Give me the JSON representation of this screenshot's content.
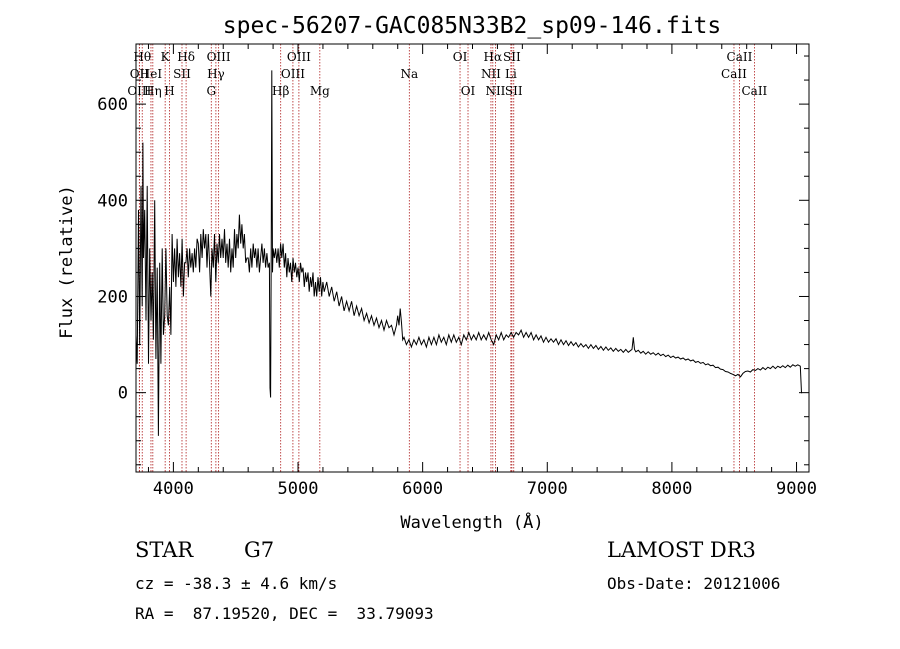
{
  "chart_data": {
    "type": "line",
    "title": "spec-56207-GAC085N33B2_sp09-146.fits",
    "xlabel": "Wavelength (Å)",
    "ylabel": "Flux (relative)",
    "xlim": [
      3700,
      9100
    ],
    "ylim": [
      -165,
      725
    ],
    "xticks": [
      4000,
      5000,
      6000,
      7000,
      8000,
      9000
    ],
    "yticks": [
      0,
      200,
      400,
      600
    ],
    "line_color": "#000000",
    "marker_color": "#b02020",
    "spectrum": [
      [
        3700,
        120
      ],
      [
        3710,
        60
      ],
      [
        3720,
        380
      ],
      [
        3730,
        100
      ],
      [
        3740,
        430
      ],
      [
        3750,
        180
      ],
      [
        3755,
        520
      ],
      [
        3760,
        280
      ],
      [
        3770,
        380
      ],
      [
        3780,
        150
      ],
      [
        3790,
        430
      ],
      [
        3800,
        60
      ],
      [
        3810,
        300
      ],
      [
        3820,
        150
      ],
      [
        3830,
        250
      ],
      [
        3840,
        110
      ],
      [
        3850,
        400
      ],
      [
        3860,
        70
      ],
      [
        3870,
        260
      ],
      [
        3880,
        -90
      ],
      [
        3890,
        270
      ],
      [
        3900,
        60
      ],
      [
        3910,
        300
      ],
      [
        3920,
        120
      ],
      [
        3930,
        160
      ],
      [
        3940,
        300
      ],
      [
        3950,
        160
      ],
      [
        3960,
        140
      ],
      [
        3970,
        220
      ],
      [
        3980,
        120
      ],
      [
        3990,
        330
      ],
      [
        4000,
        230
      ],
      [
        4010,
        300
      ],
      [
        4020,
        220
      ],
      [
        4030,
        320
      ],
      [
        4040,
        240
      ],
      [
        4050,
        290
      ],
      [
        4060,
        220
      ],
      [
        4070,
        320
      ],
      [
        4080,
        200
      ],
      [
        4090,
        270
      ],
      [
        4100,
        270
      ],
      [
        4110,
        300
      ],
      [
        4120,
        240
      ],
      [
        4130,
        300
      ],
      [
        4140,
        260
      ],
      [
        4150,
        290
      ],
      [
        4160,
        250
      ],
      [
        4170,
        300
      ],
      [
        4180,
        260
      ],
      [
        4190,
        320
      ],
      [
        4200,
        310
      ],
      [
        4210,
        250
      ],
      [
        4220,
        330
      ],
      [
        4230,
        280
      ],
      [
        4240,
        340
      ],
      [
        4250,
        300
      ],
      [
        4260,
        330
      ],
      [
        4270,
        260
      ],
      [
        4280,
        330
      ],
      [
        4290,
        270
      ],
      [
        4300,
        200
      ],
      [
        4310,
        300
      ],
      [
        4320,
        260
      ],
      [
        4330,
        330
      ],
      [
        4340,
        230
      ],
      [
        4350,
        310
      ],
      [
        4360,
        270
      ],
      [
        4370,
        330
      ],
      [
        4380,
        280
      ],
      [
        4390,
        320
      ],
      [
        4400,
        280
      ],
      [
        4410,
        340
      ],
      [
        4420,
        270
      ],
      [
        4430,
        310
      ],
      [
        4440,
        260
      ],
      [
        4450,
        320
      ],
      [
        4460,
        250
      ],
      [
        4470,
        300
      ],
      [
        4480,
        260
      ],
      [
        4490,
        340
      ],
      [
        4500,
        280
      ],
      [
        4510,
        330
      ],
      [
        4520,
        300
      ],
      [
        4530,
        370
      ],
      [
        4540,
        310
      ],
      [
        4550,
        350
      ],
      [
        4560,
        300
      ],
      [
        4570,
        330
      ],
      [
        4580,
        270
      ],
      [
        4590,
        280
      ],
      [
        4600,
        280
      ],
      [
        4610,
        250
      ],
      [
        4620,
        300
      ],
      [
        4630,
        260
      ],
      [
        4640,
        310
      ],
      [
        4650,
        280
      ],
      [
        4660,
        300
      ],
      [
        4670,
        260
      ],
      [
        4680,
        300
      ],
      [
        4690,
        250
      ],
      [
        4700,
        280
      ],
      [
        4710,
        310
      ],
      [
        4720,
        270
      ],
      [
        4730,
        300
      ],
      [
        4740,
        260
      ],
      [
        4750,
        290
      ],
      [
        4760,
        260
      ],
      [
        4770,
        270
      ],
      [
        4775,
        10
      ],
      [
        4780,
        -10
      ],
      [
        4785,
        280
      ],
      [
        4790,
        670
      ],
      [
        4795,
        250
      ],
      [
        4800,
        300
      ],
      [
        4810,
        280
      ],
      [
        4820,
        300
      ],
      [
        4830,
        270
      ],
      [
        4840,
        300
      ],
      [
        4850,
        260
      ],
      [
        4860,
        310
      ],
      [
        4870,
        280
      ],
      [
        4880,
        310
      ],
      [
        4890,
        260
      ],
      [
        4900,
        290
      ],
      [
        4910,
        240
      ],
      [
        4920,
        280
      ],
      [
        4930,
        250
      ],
      [
        4940,
        270
      ],
      [
        4950,
        230
      ],
      [
        4960,
        280
      ],
      [
        4970,
        250
      ],
      [
        4980,
        270
      ],
      [
        4990,
        240
      ],
      [
        5000,
        260
      ],
      [
        5010,
        230
      ],
      [
        5020,
        270
      ],
      [
        5030,
        250
      ],
      [
        5040,
        260
      ],
      [
        5050,
        220
      ],
      [
        5060,
        250
      ],
      [
        5070,
        230
      ],
      [
        5080,
        250
      ],
      [
        5090,
        210
      ],
      [
        5100,
        240
      ],
      [
        5110,
        220
      ],
      [
        5120,
        250
      ],
      [
        5130,
        200
      ],
      [
        5140,
        230
      ],
      [
        5150,
        200
      ],
      [
        5160,
        240
      ],
      [
        5170,
        210
      ],
      [
        5180,
        240
      ],
      [
        5190,
        200
      ],
      [
        5200,
        230
      ],
      [
        5210,
        210
      ],
      [
        5230,
        230
      ],
      [
        5250,
        200
      ],
      [
        5270,
        220
      ],
      [
        5290,
        190
      ],
      [
        5310,
        210
      ],
      [
        5330,
        180
      ],
      [
        5350,
        200
      ],
      [
        5370,
        170
      ],
      [
        5390,
        190
      ],
      [
        5410,
        170
      ],
      [
        5430,
        190
      ],
      [
        5450,
        160
      ],
      [
        5470,
        180
      ],
      [
        5490,
        160
      ],
      [
        5510,
        175
      ],
      [
        5530,
        150
      ],
      [
        5550,
        165
      ],
      [
        5570,
        145
      ],
      [
        5590,
        160
      ],
      [
        5610,
        140
      ],
      [
        5630,
        155
      ],
      [
        5650,
        135
      ],
      [
        5670,
        150
      ],
      [
        5690,
        130
      ],
      [
        5710,
        150
      ],
      [
        5730,
        135
      ],
      [
        5750,
        140
      ],
      [
        5770,
        120
      ],
      [
        5790,
        140
      ],
      [
        5800,
        160
      ],
      [
        5810,
        140
      ],
      [
        5820,
        175
      ],
      [
        5830,
        145
      ],
      [
        5840,
        110
      ],
      [
        5850,
        115
      ],
      [
        5870,
        100
      ],
      [
        5890,
        110
      ],
      [
        5910,
        95
      ],
      [
        5930,
        110
      ],
      [
        5950,
        100
      ],
      [
        5970,
        115
      ],
      [
        5990,
        100
      ],
      [
        6010,
        110
      ],
      [
        6030,
        95
      ],
      [
        6050,
        115
      ],
      [
        6070,
        100
      ],
      [
        6090,
        115
      ],
      [
        6110,
        100
      ],
      [
        6130,
        120
      ],
      [
        6150,
        105
      ],
      [
        6170,
        115
      ],
      [
        6190,
        100
      ],
      [
        6210,
        120
      ],
      [
        6230,
        105
      ],
      [
        6250,
        120
      ],
      [
        6270,
        105
      ],
      [
        6290,
        115
      ],
      [
        6310,
        100
      ],
      [
        6330,
        120
      ],
      [
        6350,
        110
      ],
      [
        6370,
        125
      ],
      [
        6390,
        110
      ],
      [
        6410,
        120
      ],
      [
        6430,
        110
      ],
      [
        6450,
        125
      ],
      [
        6470,
        110
      ],
      [
        6490,
        120
      ],
      [
        6510,
        110
      ],
      [
        6530,
        125
      ],
      [
        6550,
        110
      ],
      [
        6570,
        100
      ],
      [
        6590,
        120
      ],
      [
        6610,
        110
      ],
      [
        6630,
        125
      ],
      [
        6650,
        110
      ],
      [
        6670,
        120
      ],
      [
        6690,
        115
      ],
      [
        6710,
        125
      ],
      [
        6730,
        115
      ],
      [
        6750,
        125
      ],
      [
        6770,
        120
      ],
      [
        6790,
        130
      ],
      [
        6810,
        115
      ],
      [
        6830,
        125
      ],
      [
        6850,
        115
      ],
      [
        6870,
        125
      ],
      [
        6890,
        110
      ],
      [
        6910,
        120
      ],
      [
        6930,
        110
      ],
      [
        6950,
        118
      ],
      [
        6970,
        105
      ],
      [
        6990,
        115
      ],
      [
        7010,
        105
      ],
      [
        7030,
        112
      ],
      [
        7050,
        105
      ],
      [
        7070,
        112
      ],
      [
        7090,
        100
      ],
      [
        7110,
        110
      ],
      [
        7130,
        100
      ],
      [
        7150,
        108
      ],
      [
        7170,
        98
      ],
      [
        7190,
        106
      ],
      [
        7210,
        98
      ],
      [
        7230,
        104
      ],
      [
        7250,
        95
      ],
      [
        7270,
        102
      ],
      [
        7290,
        95
      ],
      [
        7310,
        100
      ],
      [
        7330,
        92
      ],
      [
        7350,
        100
      ],
      [
        7370,
        92
      ],
      [
        7390,
        98
      ],
      [
        7410,
        90
      ],
      [
        7430,
        96
      ],
      [
        7450,
        88
      ],
      [
        7470,
        95
      ],
      [
        7490,
        88
      ],
      [
        7510,
        93
      ],
      [
        7530,
        86
      ],
      [
        7550,
        92
      ],
      [
        7570,
        86
      ],
      [
        7590,
        90
      ],
      [
        7610,
        84
      ],
      [
        7630,
        90
      ],
      [
        7650,
        84
      ],
      [
        7670,
        88
      ],
      [
        7680,
        90
      ],
      [
        7690,
        115
      ],
      [
        7700,
        90
      ],
      [
        7710,
        85
      ],
      [
        7730,
        88
      ],
      [
        7750,
        82
      ],
      [
        7770,
        86
      ],
      [
        7790,
        80
      ],
      [
        7810,
        85
      ],
      [
        7830,
        80
      ],
      [
        7850,
        83
      ],
      [
        7870,
        78
      ],
      [
        7890,
        82
      ],
      [
        7910,
        77
      ],
      [
        7930,
        80
      ],
      [
        7950,
        75
      ],
      [
        7970,
        78
      ],
      [
        7990,
        73
      ],
      [
        8010,
        76
      ],
      [
        8030,
        72
      ],
      [
        8050,
        74
      ],
      [
        8070,
        70
      ],
      [
        8090,
        72
      ],
      [
        8110,
        68
      ],
      [
        8130,
        70
      ],
      [
        8150,
        66
      ],
      [
        8170,
        68
      ],
      [
        8190,
        63
      ],
      [
        8210,
        65
      ],
      [
        8230,
        61
      ],
      [
        8250,
        63
      ],
      [
        8270,
        58
      ],
      [
        8290,
        60
      ],
      [
        8310,
        56
      ],
      [
        8330,
        57
      ],
      [
        8350,
        52
      ],
      [
        8370,
        53
      ],
      [
        8390,
        49
      ],
      [
        8410,
        48
      ],
      [
        8430,
        44
      ],
      [
        8450,
        43
      ],
      [
        8470,
        40
      ],
      [
        8490,
        38
      ],
      [
        8510,
        35
      ],
      [
        8530,
        38
      ],
      [
        8550,
        33
      ],
      [
        8570,
        40
      ],
      [
        8590,
        44
      ],
      [
        8610,
        45
      ],
      [
        8630,
        43
      ],
      [
        8650,
        48
      ],
      [
        8670,
        46
      ],
      [
        8690,
        50
      ],
      [
        8710,
        47
      ],
      [
        8730,
        52
      ],
      [
        8750,
        48
      ],
      [
        8770,
        53
      ],
      [
        8790,
        50
      ],
      [
        8810,
        55
      ],
      [
        8830,
        50
      ],
      [
        8850,
        55
      ],
      [
        8870,
        52
      ],
      [
        8890,
        56
      ],
      [
        8910,
        52
      ],
      [
        8930,
        57
      ],
      [
        8950,
        53
      ],
      [
        8970,
        58
      ],
      [
        8990,
        55
      ],
      [
        9010,
        58
      ],
      [
        9030,
        55
      ],
      [
        9040,
        0
      ],
      [
        9045,
        0
      ]
    ],
    "lines": [
      {
        "label": "Hθ",
        "wave": 3750,
        "row": 1
      },
      {
        "label": "OII",
        "wave": 3727,
        "row": 2
      },
      {
        "label": "OIII",
        "wave": 3727,
        "row": 3
      },
      {
        "label": "HeI",
        "wave": 3820,
        "row": 2
      },
      {
        "label": "Hη",
        "wave": 3835,
        "row": 3
      },
      {
        "label": "K",
        "wave": 3934,
        "row": 1
      },
      {
        "label": "H",
        "wave": 3969,
        "row": 3
      },
      {
        "label": "SII",
        "wave": 4069,
        "row": 2
      },
      {
        "label": "Hδ",
        "wave": 4102,
        "row": 1
      },
      {
        "label": "OIII",
        "wave": 4363,
        "row": 1
      },
      {
        "label": "Hγ",
        "wave": 4341,
        "row": 2
      },
      {
        "label": "G",
        "wave": 4304,
        "row": 3
      },
      {
        "label": "Hβ",
        "wave": 4861,
        "row": 3
      },
      {
        "label": "OIII",
        "wave": 5007,
        "row": 1
      },
      {
        "label": "OIII",
        "wave": 4959,
        "row": 2
      },
      {
        "label": "Mg",
        "wave": 5175,
        "row": 3
      },
      {
        "label": "Na",
        "wave": 5893,
        "row": 2
      },
      {
        "label": "OI",
        "wave": 6300,
        "row": 1
      },
      {
        "label": "OI",
        "wave": 6364,
        "row": 3
      },
      {
        "label": "Hα",
        "wave": 6563,
        "row": 1
      },
      {
        "label": "NII",
        "wave": 6548,
        "row": 2
      },
      {
        "label": "NII",
        "wave": 6584,
        "row": 3
      },
      {
        "label": "SII",
        "wave": 6716,
        "row": 1
      },
      {
        "label": "Li",
        "wave": 6708,
        "row": 2
      },
      {
        "label": "SII",
        "wave": 6731,
        "row": 3
      },
      {
        "label": "CaII",
        "wave": 8542,
        "row": 1
      },
      {
        "label": "CaII",
        "wave": 8498,
        "row": 2
      },
      {
        "label": "CaII",
        "wave": 8662,
        "row": 3
      }
    ]
  },
  "footer": {
    "class_label": "STAR",
    "subclass": "G7",
    "survey": "LAMOST DR3",
    "cz": "cz = -38.3 ± 4.6 km/s",
    "obs_date": "Obs-Date: 20121006",
    "coords": "RA =  87.19520, DEC =  33.79093"
  }
}
